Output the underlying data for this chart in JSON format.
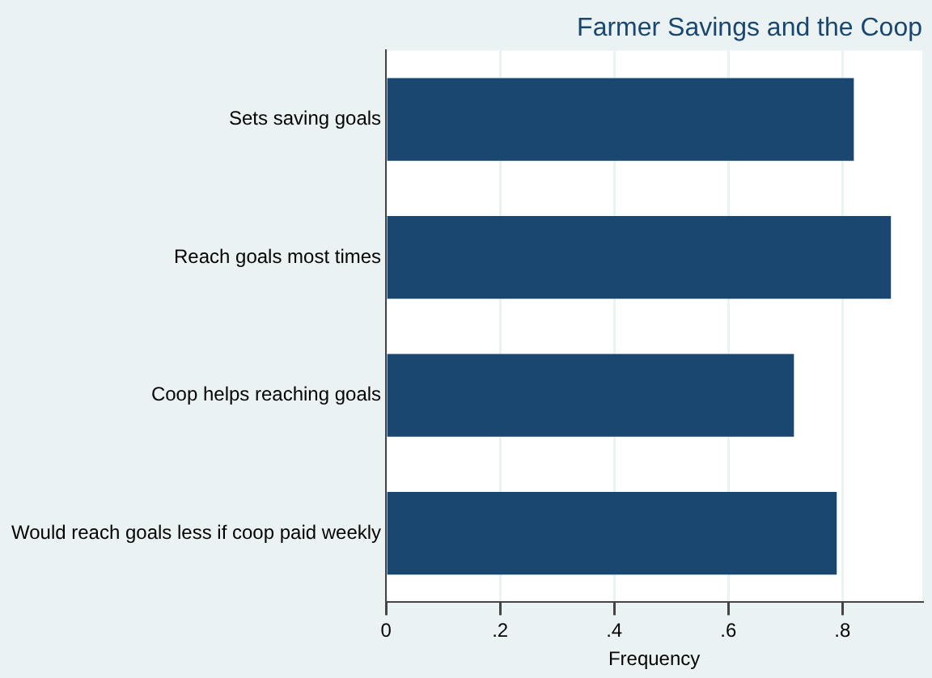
{
  "chart_data": {
    "type": "bar",
    "orientation": "horizontal",
    "title": "Farmer Savings and the Coop",
    "xlabel": "Frequency",
    "categories": [
      "Sets saving goals",
      "Reach goals most times",
      "Coop helps reaching goals",
      "Would reach goals less if coop paid weekly"
    ],
    "values": [
      0.82,
      0.885,
      0.715,
      0.79
    ],
    "color": "#1a476f",
    "xlim": [
      0,
      0.94
    ],
    "xticks": [
      {
        "value": 0,
        "label": "0"
      },
      {
        "value": 0.2,
        "label": ".2"
      },
      {
        "value": 0.4,
        "label": ".4"
      },
      {
        "value": 0.6,
        "label": ".6"
      },
      {
        "value": 0.8,
        "label": ".8"
      }
    ],
    "grid": "x",
    "legend": false
  }
}
